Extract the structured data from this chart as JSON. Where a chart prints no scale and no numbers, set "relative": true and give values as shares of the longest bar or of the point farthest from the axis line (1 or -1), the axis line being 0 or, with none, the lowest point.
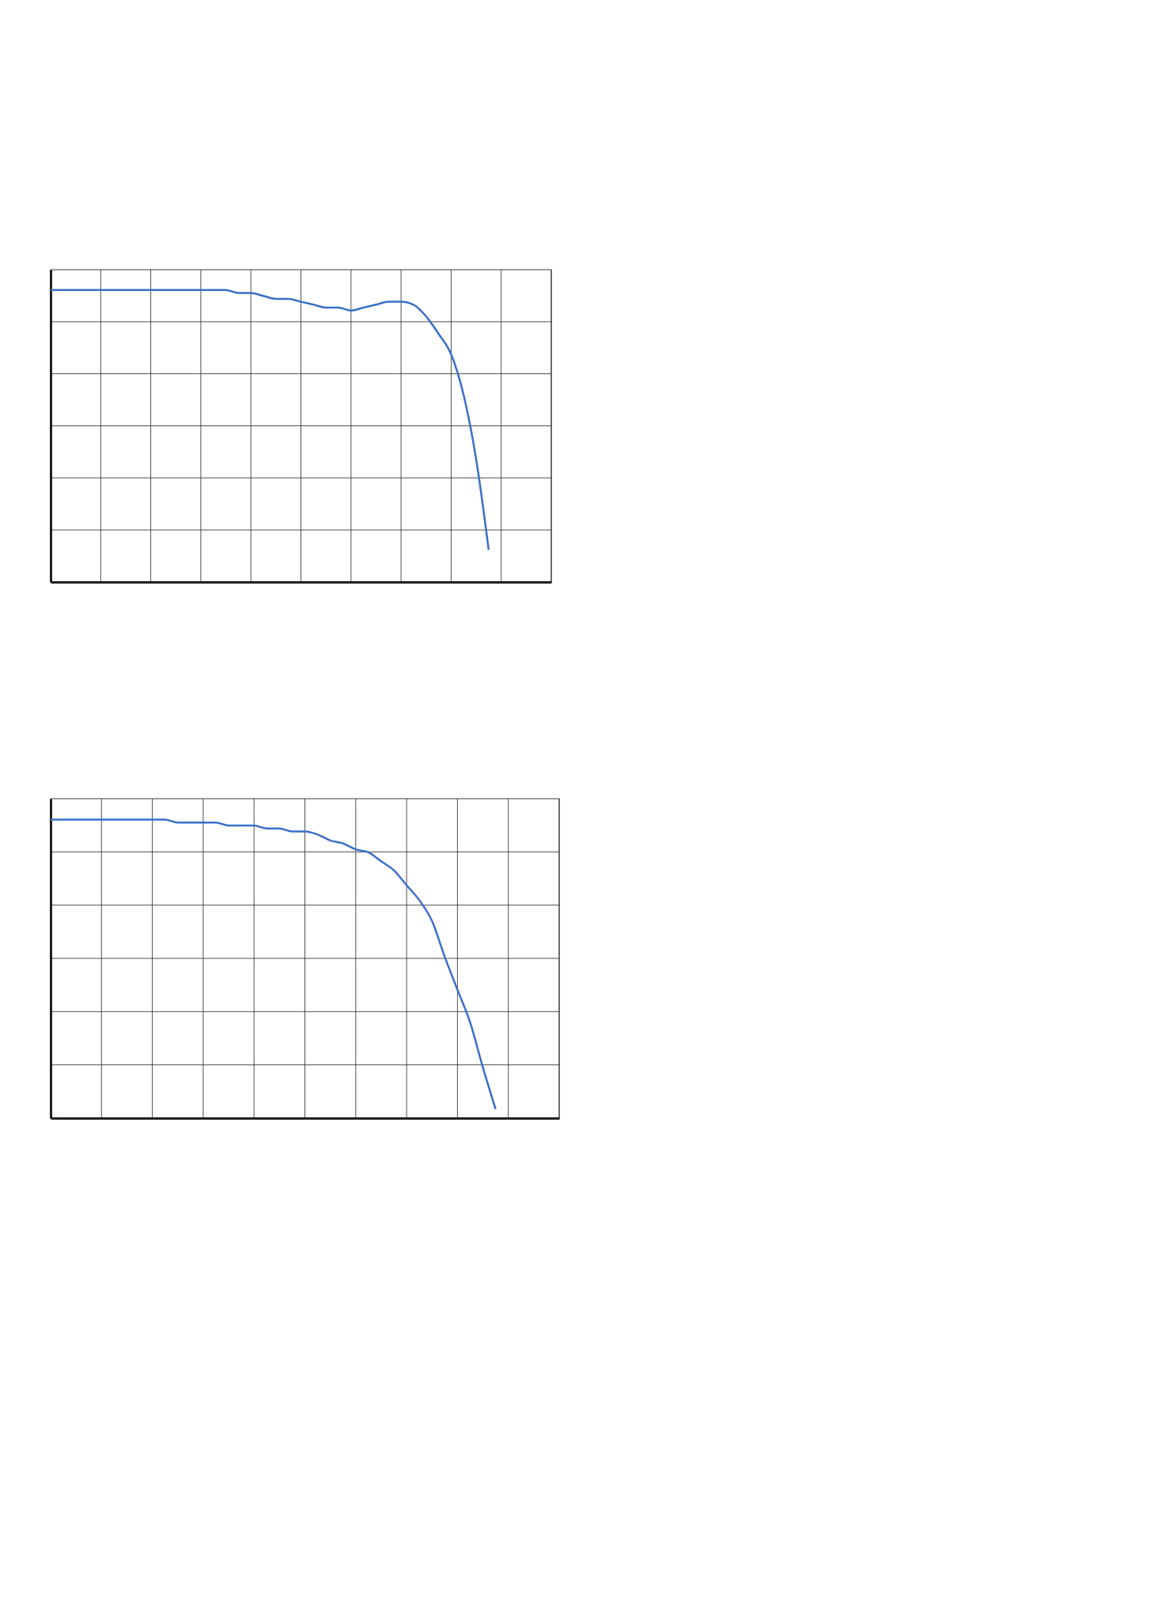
{
  "chart_data": [
    {
      "type": "line",
      "relative": true,
      "grid": true,
      "categories": [
        null,
        null,
        null,
        null,
        null,
        null,
        null,
        null,
        null,
        null,
        null,
        null,
        null,
        null,
        null,
        null,
        null,
        null,
        null,
        null,
        null,
        null,
        null,
        null,
        null,
        null,
        null,
        null,
        null,
        null,
        null,
        null,
        null,
        null,
        null,
        null,
        null,
        null,
        null,
        null,
        null
      ],
      "series": [
        {
          "color": "#3a6fc9",
          "values": [
            1.0,
            1.0,
            1.0,
            1.0,
            1.0,
            1.0,
            1.0,
            1.0,
            1.0,
            1.0,
            1.0,
            1.0,
            1.0,
            1.0,
            1.0,
            0.99,
            0.99,
            0.98,
            0.97,
            0.97,
            0.96,
            0.95,
            0.94,
            0.94,
            0.93,
            0.94,
            0.95,
            0.96,
            0.96,
            0.95,
            0.91,
            0.85,
            0.78,
            0.64,
            0.42,
            0.11,
            null,
            null,
            null,
            null,
            null
          ]
        }
      ]
    },
    {
      "type": "line",
      "relative": true,
      "grid": true,
      "categories": [
        null,
        null,
        null,
        null,
        null,
        null,
        null,
        null,
        null,
        null,
        null,
        null,
        null,
        null,
        null,
        null,
        null,
        null,
        null,
        null,
        null,
        null,
        null,
        null,
        null,
        null,
        null,
        null,
        null,
        null,
        null,
        null,
        null,
        null,
        null,
        null,
        null,
        null,
        null,
        null,
        null
      ],
      "series": [
        {
          "color": "#3a6fc9",
          "values": [
            1.0,
            1.0,
            1.0,
            1.0,
            1.0,
            1.0,
            1.0,
            1.0,
            1.0,
            1.0,
            0.99,
            0.99,
            0.99,
            0.99,
            0.98,
            0.98,
            0.98,
            0.97,
            0.97,
            0.96,
            0.96,
            0.95,
            0.93,
            0.92,
            0.9,
            0.89,
            0.86,
            0.83,
            0.78,
            0.73,
            0.66,
            0.54,
            0.43,
            0.32,
            0.17,
            0.03,
            null,
            null,
            null,
            null,
            null
          ]
        }
      ]
    }
  ]
}
